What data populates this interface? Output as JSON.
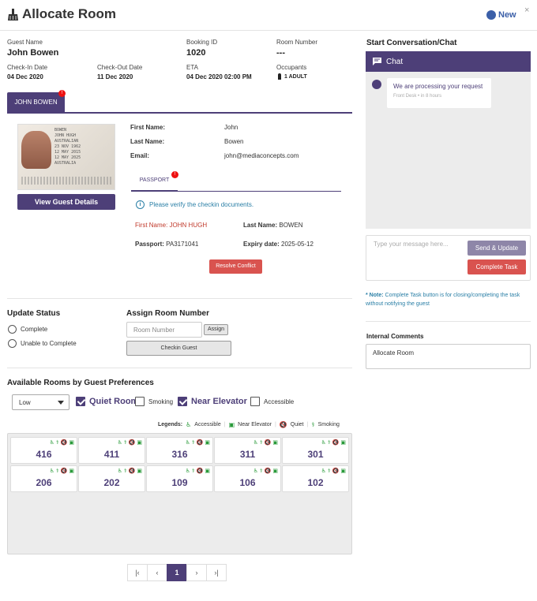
{
  "header": {
    "title": "Allocate Room",
    "new_label": "New",
    "close": "×"
  },
  "booking": {
    "guest_name_label": "Guest Name",
    "guest_name": "John Bowen",
    "booking_id_label": "Booking ID",
    "booking_id": "1020",
    "room_number_label": "Room Number",
    "room_number": "---",
    "checkin_label": "Check-In Date",
    "checkin": "04 Dec 2020",
    "checkout_label": "Check-Out Date",
    "checkout": "11 Dec 2020",
    "eta_label": "ETA",
    "eta": "04 Dec 2020 02:00 PM",
    "occupants_label": "Occupants",
    "occupants": "1 ADULT"
  },
  "guest_tab": {
    "label": "JOHN BOWEN",
    "badge": "!"
  },
  "passport_text": {
    "l1": "BOWEN",
    "l2": "JOHN HUGH",
    "l3": "AUSTRALIAN",
    "l4": "23 NOV 1962",
    "l5": "12 MAY 2015",
    "l6": "12 MAY 2025",
    "l7": "AUSTRALIA"
  },
  "guest_details": {
    "button": "View Guest Details",
    "first_name_label": "First Name:",
    "first_name": "John",
    "last_name_label": "Last Name:",
    "last_name": "Bowen",
    "email_label": "Email:",
    "email": "john@mediaconcepts.com"
  },
  "passport_tab": {
    "label": "PASSPORT",
    "badge": "!"
  },
  "verify": {
    "message": "Please verify the checkin documents.",
    "first_name": "First Name: JOHN HUGH",
    "last_name_label": "Last Name:",
    "last_name": "BOWEN",
    "passport_label": "Passport:",
    "passport": "PA3171041",
    "expiry_label": "Expiry date:",
    "expiry": "2025-05-12",
    "resolve_button": "Resolve Conflict"
  },
  "update_status": {
    "title": "Update Status",
    "options": [
      "Complete",
      "Unable to Complete"
    ]
  },
  "assign_room": {
    "title": "Assign Room Number",
    "placeholder": "Room Number",
    "assign_button": "Assign",
    "checkin_button": "Checkin Guest"
  },
  "preferences": {
    "title": "Available Rooms by Guest Preferences",
    "floor_select": "Low",
    "options": [
      {
        "label": "Quiet Room",
        "checked": true
      },
      {
        "label": "Smoking",
        "checked": false
      },
      {
        "label": "Near Elevator",
        "checked": true
      },
      {
        "label": "Accessible",
        "checked": false
      }
    ]
  },
  "legends": {
    "title": "Legends:",
    "items": [
      {
        "icon": "accessible-icon",
        "label": "Accessible"
      },
      {
        "icon": "elevator-icon",
        "label": "Near Elevator"
      },
      {
        "icon": "quiet-icon",
        "label": "Quiet"
      },
      {
        "icon": "smoking-icon",
        "label": "Smoking"
      }
    ]
  },
  "rooms": [
    "416",
    "411",
    "316",
    "311",
    "301",
    "206",
    "202",
    "109",
    "106",
    "102"
  ],
  "pagination": {
    "first": "|‹",
    "prev": "‹",
    "current": "1",
    "next": "›",
    "last": "›|"
  },
  "chat": {
    "section_title": "Start Conversation/Chat",
    "header": "Chat",
    "message": "We are processing your request",
    "meta": "Front Desk • in 8 hours",
    "placeholder": "Type your message here...",
    "send_button": "Send & Update",
    "complete_button": "Complete Task",
    "note_prefix": "* Note:",
    "note": "Complete Task button is for closing/completing the task without notifying the guest"
  },
  "internal_comments": {
    "title": "Internal Comments",
    "value": "Allocate Room"
  },
  "colors": {
    "primary": "#4d3f78",
    "danger": "#d9534f",
    "info": "#2a7fa6",
    "amenity": "#2a9a3a"
  }
}
